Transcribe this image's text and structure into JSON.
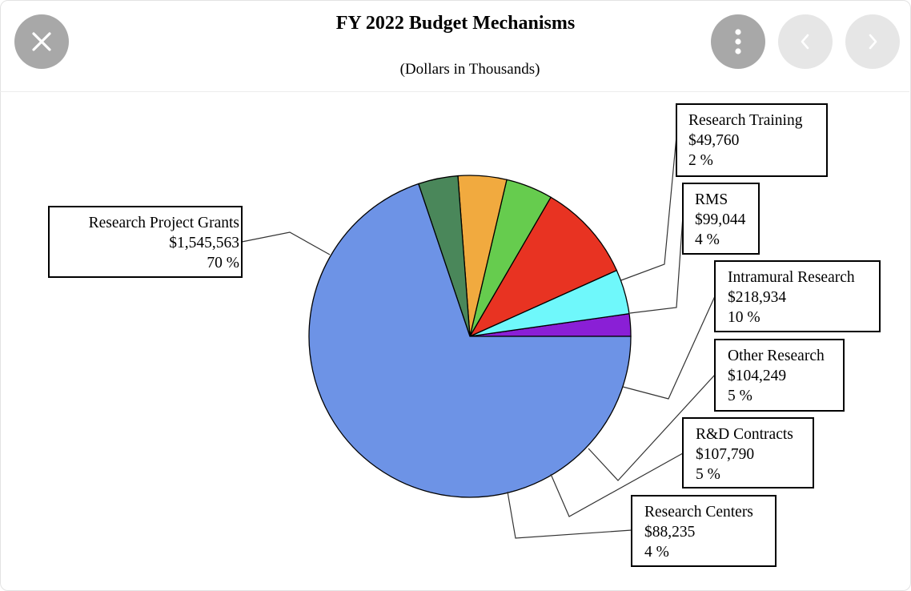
{
  "viewer": {
    "close_icon": "close-icon",
    "more_icon": "more-vertical-icon",
    "prev_icon": "chevron-left-icon",
    "next_icon": "chevron-right-icon"
  },
  "chart_data": {
    "type": "pie",
    "title": "FY 2022 Budget Mechanisms",
    "subtitle": "(Dollars in Thousands)",
    "slices": [
      {
        "name": "Research Training",
        "value_label": "$49,760",
        "pct_label": "2 %",
        "value": 49760,
        "color": "#8a1fd6"
      },
      {
        "name": "RMS",
        "value_label": "$99,044",
        "pct_label": "4 %",
        "value": 99044,
        "color": "#6ff8fb"
      },
      {
        "name": "Intramural Research",
        "value_label": "$218,934",
        "pct_label": "10 %",
        "value": 218934,
        "color": "#e83322"
      },
      {
        "name": "Other Research",
        "value_label": "$104,249",
        "pct_label": "5 %",
        "value": 104249,
        "color": "#66cc4e"
      },
      {
        "name": "R&D Contracts",
        "value_label": "$107,790",
        "pct_label": "5 %",
        "value": 107790,
        "color": "#f1aa3f"
      },
      {
        "name": "Research Centers",
        "value_label": "$88,235",
        "pct_label": "4 %",
        "value": 88235,
        "color": "#4a875a"
      },
      {
        "name": "Research Project Grants",
        "value_label": "$1,545,563",
        "pct_label": "70 %",
        "value": 1545563,
        "color": "#6d93e6"
      }
    ]
  }
}
